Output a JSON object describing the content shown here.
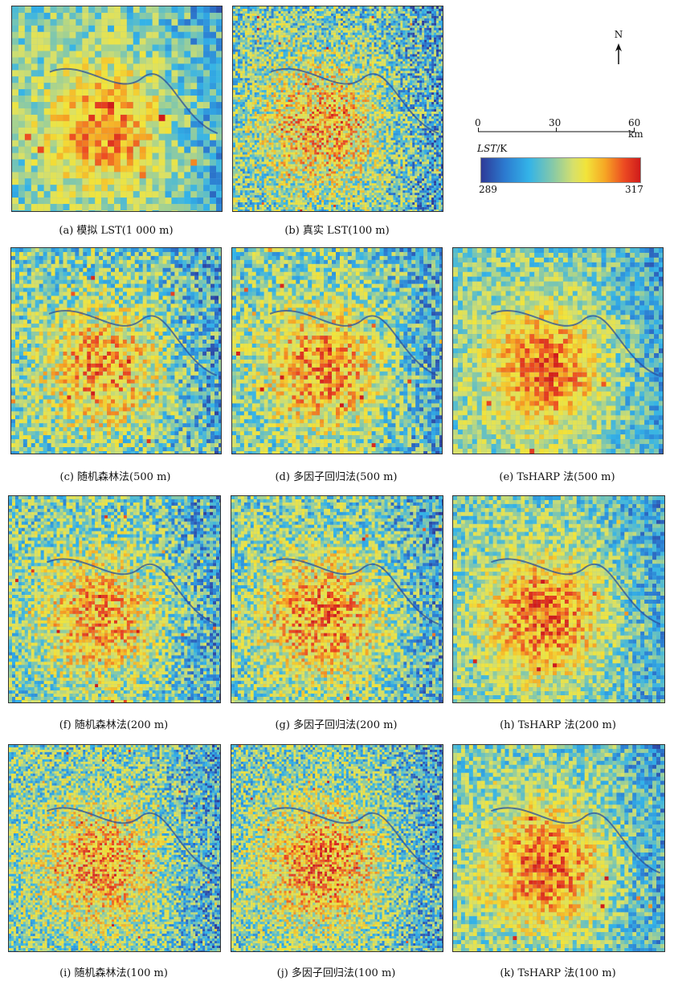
{
  "panels": [
    {
      "id": "a",
      "caption": "(a) 模拟 LST(1 000 m)",
      "cell": 8,
      "urban": 1.0,
      "seed": 11,
      "noise": 0.22
    },
    {
      "id": "b",
      "caption": "(b) 真实 LST(100 m)",
      "cell": 3,
      "urban": 0.8,
      "seed": 23,
      "noise": 0.35
    },
    {
      "id": "c",
      "caption": "(c) 随机森林法(500 m)",
      "cell": 5,
      "urban": 0.85,
      "seed": 37,
      "noise": 0.3
    },
    {
      "id": "d",
      "caption": "(d) 多因子回归法(500 m)",
      "cell": 5,
      "urban": 0.95,
      "seed": 41,
      "noise": 0.28
    },
    {
      "id": "e",
      "caption": "(e) TsHARP 法(500 m)",
      "cell": 6,
      "urban": 1.1,
      "seed": 53,
      "noise": 0.22
    },
    {
      "id": "f",
      "caption": "(f) 随机森林法(200 m)",
      "cell": 4,
      "urban": 0.85,
      "seed": 61,
      "noise": 0.3
    },
    {
      "id": "g",
      "caption": "(g) 多因子回归法(200 m)",
      "cell": 4,
      "urban": 0.95,
      "seed": 71,
      "noise": 0.3
    },
    {
      "id": "h",
      "caption": "(h) TsHARP 法(200 m)",
      "cell": 5,
      "urban": 1.1,
      "seed": 83,
      "noise": 0.24
    },
    {
      "id": "i",
      "caption": "(i) 随机森林法(100 m)",
      "cell": 3,
      "urban": 0.85,
      "seed": 97,
      "noise": 0.32
    },
    {
      "id": "j",
      "caption": "(j) 多因子回归法(100 m)",
      "cell": 3,
      "urban": 0.95,
      "seed": 103,
      "noise": 0.32
    },
    {
      "id": "k",
      "caption": "(k) TsHARP 法(100 m)",
      "cell": 5,
      "urban": 1.1,
      "seed": 113,
      "noise": 0.24
    }
  ],
  "legend": {
    "north": "N",
    "scale_ticks": [
      "0",
      "30",
      "60 km"
    ],
    "variable": "LST",
    "unit": "/K",
    "min": "289",
    "max": "317",
    "colors": [
      "#2d3a98",
      "#2c7bd0",
      "#33b3e8",
      "#86c9a8",
      "#d7e06a",
      "#f2e43a",
      "#f6a524",
      "#ec4a22",
      "#cf1b1b"
    ]
  }
}
